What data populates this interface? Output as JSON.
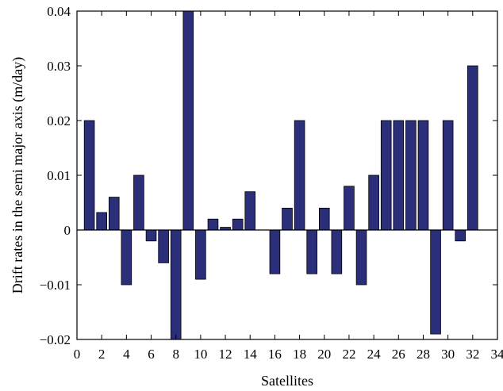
{
  "chart_data": {
    "type": "bar",
    "title": "",
    "xlabel": "Satellites",
    "ylabel": "Drift rates in the semi major axis (m/day)",
    "xlim": [
      0,
      34
    ],
    "ylim": [
      -0.02,
      0.04
    ],
    "xticks": [
      0,
      2,
      4,
      6,
      8,
      10,
      12,
      14,
      16,
      18,
      20,
      22,
      24,
      26,
      28,
      30,
      32,
      34
    ],
    "yticks": [
      -0.02,
      -0.01,
      0,
      0.01,
      0.02,
      0.03,
      0.04
    ],
    "ytick_labels": [
      "−0.02",
      "−0.01",
      "0",
      "0.01",
      "0.02",
      "0.03",
      "0.04"
    ],
    "grid": false,
    "bar_color": "#2b2f7a",
    "x": [
      1,
      2,
      3,
      4,
      5,
      6,
      7,
      8,
      9,
      10,
      11,
      12,
      13,
      14,
      15,
      16,
      17,
      18,
      19,
      20,
      21,
      22,
      23,
      24,
      25,
      26,
      27,
      28,
      29,
      30,
      31,
      32
    ],
    "values": [
      0.02,
      0.0032,
      0.006,
      -0.01,
      0.01,
      -0.002,
      -0.006,
      -0.02,
      0.04,
      -0.009,
      0.002,
      0.0005,
      0.002,
      0.007,
      0,
      -0.008,
      0.004,
      0.02,
      -0.008,
      0.004,
      -0.008,
      0.008,
      -0.01,
      0.01,
      0.02,
      0.02,
      0.02,
      0.02,
      -0.019,
      0.02,
      -0.002,
      0.03
    ]
  }
}
